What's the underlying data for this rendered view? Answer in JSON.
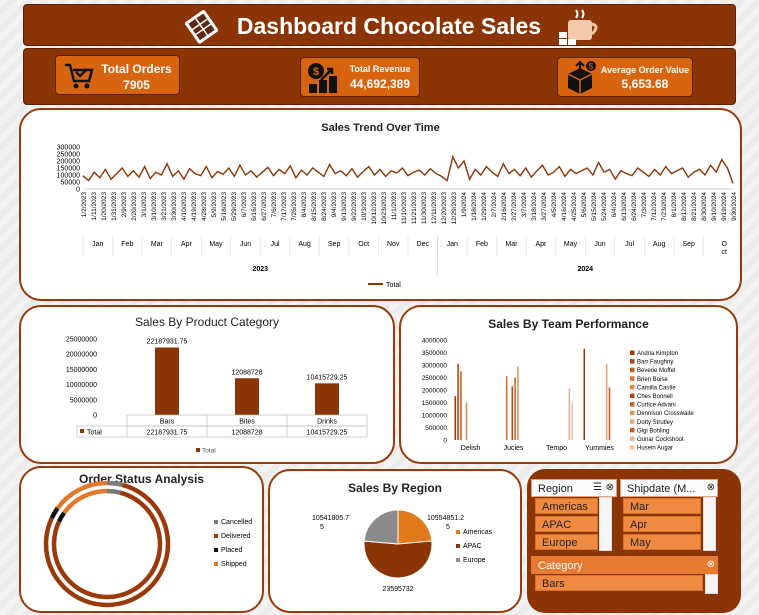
{
  "header": {
    "title": "Dashboard Chocolate Sales"
  },
  "kpis": {
    "orders": {
      "label": "Total Orders",
      "value": "7905"
    },
    "revenue": {
      "label": "Total Revenue",
      "value": "44,692,389"
    },
    "aov": {
      "label": "Average Order Value",
      "value": "5,653.68"
    }
  },
  "trend": {
    "title": "Sales Trend Over Time",
    "y_ticks": [
      "300000",
      "250000",
      "200000",
      "150000",
      "100000",
      "50000",
      "0"
    ],
    "date_labels": [
      "1/2/2023",
      "1/11/2023",
      "1/20/2023",
      "1/31/2023",
      "2/9/2023",
      "2/20/2023",
      "3/1/2023",
      "3/10/2023",
      "3/21/2023",
      "3/30/2023",
      "4/10/2023",
      "4/19/2023",
      "4/28/2023",
      "5/9/2023",
      "5/18/2023",
      "5/29/2023",
      "6/7/2023",
      "6/16/2023",
      "6/27/2023",
      "7/6/2023",
      "7/17/2023",
      "7/26/2023",
      "8/4/2023",
      "8/15/2023",
      "8/24/2023",
      "9/4/2023",
      "9/13/2023",
      "9/22/2023",
      "10/3/2023",
      "10/12/2023",
      "10/23/2023",
      "11/1/2023",
      "11/10/2023",
      "11/21/2023",
      "11/30/2023",
      "12/11/2023",
      "12/20/2023",
      "12/29/2023",
      "1/9/2024",
      "1/18/2024",
      "1/29/2024",
      "2/7/2024",
      "2/16/2024",
      "2/27/2024",
      "3/7/2024",
      "3/18/2024",
      "3/27/2024",
      "4/5/2024",
      "4/16/2024",
      "4/25/2024",
      "5/6/2024",
      "5/15/2024",
      "5/24/2024",
      "6/4/2024",
      "6/13/2024",
      "6/24/2024",
      "7/3/2024",
      "7/12/2024",
      "7/23/2024",
      "8/1/2024",
      "8/12/2024",
      "8/21/2024",
      "8/30/2024",
      "9/10/2024",
      "9/19/2024",
      "9/30/2024"
    ],
    "months_2023": [
      "Jan",
      "Feb",
      "Mar",
      "Apr",
      "May",
      "Jun",
      "Jul",
      "Aug",
      "Sep",
      "Oct",
      "Nov",
      "Dec"
    ],
    "months_2024": [
      "Jan",
      "Feb",
      "Mar",
      "Apr",
      "May",
      "Jun",
      "Jul",
      "Aug",
      "Sep",
      "O ct"
    ],
    "year_2023": "2023",
    "year_2024": "2024",
    "legend": "Total"
  },
  "category": {
    "title": "Sales By Product Category",
    "y_ticks": [
      "25000000",
      "20000000",
      "15000000",
      "10000000",
      "5000000",
      "0"
    ],
    "value_labels": [
      "22187931.75",
      "12088728",
      "10415729.25"
    ],
    "row_label": "Total",
    "legend": "Total"
  },
  "team": {
    "title": "Sales By Team Performance",
    "y_ticks": [
      "4000000",
      "3500000",
      "3000000",
      "2500000",
      "2000000",
      "1500000",
      "1000000",
      "500000",
      "0"
    ],
    "legend": [
      "Andria Kimpton",
      "Barr Faughny",
      "Beverie Moffet",
      "Brien Boise",
      "Camilla Castle",
      "Ches Bonnell",
      "Curtice Advani",
      "Dennison Crosswaite",
      "Dotty Strutley",
      "Gigi Bohling",
      "Gunar Cockshoot",
      "Husein Augar"
    ]
  },
  "status": {
    "title": "Order Status Analysis",
    "legend": [
      "Cancelled",
      "Delivered",
      "Placed",
      "Shipped"
    ]
  },
  "region": {
    "title": "Sales By Region",
    "label_left_1": "10541805.7",
    "label_left_2": "5",
    "label_right_1": "10554851.2",
    "label_right_2": "5",
    "label_bottom": "23595732",
    "legend": [
      "Americas",
      "APAC",
      "Europe"
    ]
  },
  "slicers": {
    "region": {
      "header": "Region",
      "items": [
        "Americas",
        "APAC",
        "Europe"
      ]
    },
    "shipdate": {
      "header": "Shipdate (M...",
      "items": [
        "Mar",
        "Apr",
        "May"
      ]
    },
    "category": {
      "header": "Category",
      "items": [
        "Bars"
      ]
    }
  },
  "chart_data": [
    {
      "type": "line",
      "title": "Sales Trend Over Time",
      "x_range": [
        "1/2/2023",
        "9/30/2024"
      ],
      "ylim": [
        0,
        300000
      ],
      "series": [
        {
          "name": "Total",
          "values": [
            95000,
            60000,
            120000,
            80000,
            140000,
            70000,
            110000,
            150000,
            90000,
            130000,
            85000,
            160000,
            75000,
            120000,
            100000,
            180000,
            90000,
            130000,
            70000,
            145000,
            110000,
            95000,
            160000,
            80000,
            125000,
            105000,
            150000,
            90000,
            170000,
            100000,
            130000,
            85000,
            120000,
            155000,
            95000,
            140000,
            110000,
            165000,
            80000,
            135000,
            100000,
            150000,
            120000,
            90000,
            175000,
            110000,
            130000,
            95000,
            145000,
            85000,
            125000,
            160000,
            100000,
            140000,
            90000,
            130000,
            115000,
            150000,
            95000,
            120000,
            135000,
            100000,
            145000,
            110000,
            90000,
            60000,
            230000,
            150000,
            200000,
            70000,
            140000,
            100000,
            160000,
            120000,
            90000,
            180000,
            110000,
            140000,
            95000,
            150000,
            85000,
            130000,
            170000,
            100000,
            120000,
            160000,
            90000,
            140000,
            110000,
            130000,
            150000,
            100000,
            190000,
            120000,
            140000,
            70000,
            130000,
            110000,
            95000,
            150000,
            120000,
            90000,
            140000,
            100000,
            160000,
            110000,
            130000,
            150000,
            85000,
            120000,
            140000,
            100000,
            170000,
            120000,
            210000,
            150000,
            40000
          ]
        }
      ]
    },
    {
      "type": "bar",
      "title": "Sales By Product Category",
      "categories": [
        "Bars",
        "Bites",
        "Drinks"
      ],
      "series": [
        {
          "name": "Total",
          "values": [
            22187931.75,
            12088728,
            10415729.25
          ]
        }
      ],
      "ylim": [
        0,
        25000000
      ]
    },
    {
      "type": "bar",
      "title": "Sales By Team Performance",
      "categories": [
        "Delish",
        "Jucies",
        "Tempo",
        "Yummies"
      ],
      "ylim": [
        0,
        4000000
      ],
      "series": [
        {
          "name": "Andria Kimpton",
          "values": [
            1750000,
            0,
            0,
            3650000
          ]
        },
        {
          "name": "Barr Faughny",
          "values": [
            3050000,
            0,
            0,
            0
          ]
        },
        {
          "name": "Beverie Moffet",
          "values": [
            2750000,
            0,
            0,
            0
          ]
        },
        {
          "name": "Brien Boise",
          "values": [
            0,
            2550000,
            0,
            0
          ]
        },
        {
          "name": "Camilla Castle",
          "values": [
            1500000,
            0,
            0,
            0
          ]
        },
        {
          "name": "Ches Bonnell",
          "values": [
            0,
            2150000,
            0,
            0
          ]
        },
        {
          "name": "Curtice Advani",
          "values": [
            0,
            2500000,
            0,
            0
          ]
        },
        {
          "name": "Dennison Crosswaite",
          "values": [
            0,
            2950000,
            0,
            0
          ]
        },
        {
          "name": "Dotty Strutley",
          "values": [
            0,
            0,
            0,
            3050000
          ]
        },
        {
          "name": "Gigi Bohling",
          "values": [
            0,
            0,
            0,
            2100000
          ]
        },
        {
          "name": "Gunar Cockshoot",
          "values": [
            0,
            0,
            2050000,
            0
          ]
        },
        {
          "name": "Husein Augar",
          "values": [
            0,
            0,
            1500000,
            0
          ]
        }
      ]
    },
    {
      "type": "pie",
      "title": "Order Status Analysis",
      "categories": [
        "Cancelled",
        "Delivered",
        "Placed",
        "Shipped"
      ],
      "values": [
        4,
        78,
        3,
        15
      ]
    },
    {
      "type": "pie",
      "title": "Sales By Region",
      "categories": [
        "Americas",
        "APAC",
        "Europe"
      ],
      "values": [
        10554851.25,
        23595732,
        10541805.75
      ]
    }
  ]
}
